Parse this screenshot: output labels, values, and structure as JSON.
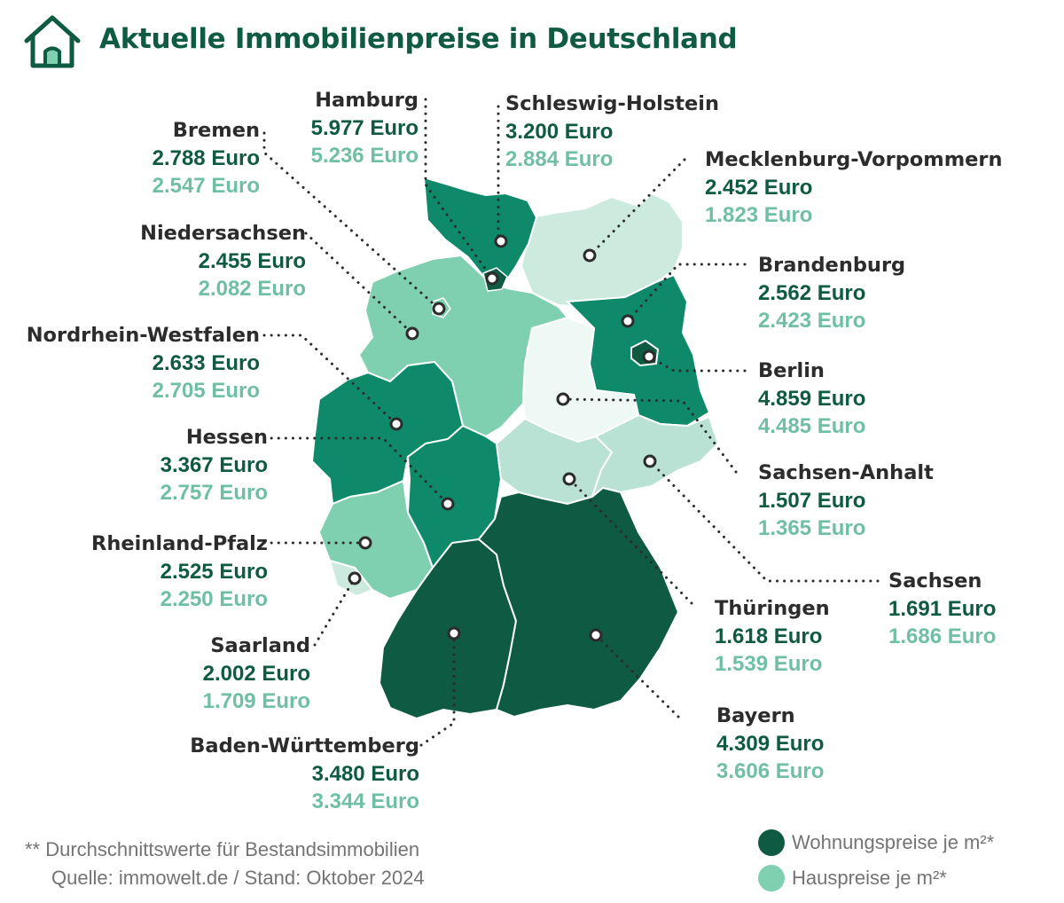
{
  "title": "Aktuelle Immobilienpreise in Deutschland",
  "colors": {
    "apartment": "#0e5a43",
    "house": "#7fcfb1",
    "house_label": "#6fbfa6"
  },
  "regions": [
    {
      "id": "hamburg",
      "name": "Hamburg",
      "apartment_price": "5.977 Euro",
      "house_price": "5.236 Euro"
    },
    {
      "id": "schleswig-holstein",
      "name": "Schleswig-Holstein",
      "apartment_price": "3.200 Euro",
      "house_price": "2.884 Euro"
    },
    {
      "id": "bremen",
      "name": "Bremen",
      "apartment_price": "2.788 Euro",
      "house_price": "2.547 Euro"
    },
    {
      "id": "mecklenburg-vorpommern",
      "name": "Mecklenburg-Vorpommern",
      "apartment_price": "2.452 Euro",
      "house_price": "1.823 Euro"
    },
    {
      "id": "niedersachsen",
      "name": "Niedersachsen",
      "apartment_price": "2.455 Euro",
      "house_price": "2.082 Euro"
    },
    {
      "id": "brandenburg",
      "name": "Brandenburg",
      "apartment_price": "2.562 Euro",
      "house_price": "2.423 Euro"
    },
    {
      "id": "nordrhein-westfalen",
      "name": "Nordrhein-Westfalen",
      "apartment_price": "2.633 Euro",
      "house_price": "2.705 Euro"
    },
    {
      "id": "berlin",
      "name": "Berlin",
      "apartment_price": "4.859 Euro",
      "house_price": "4.485 Euro"
    },
    {
      "id": "hessen",
      "name": "Hessen",
      "apartment_price": "3.367 Euro",
      "house_price": "2.757 Euro"
    },
    {
      "id": "sachsen-anhalt",
      "name": "Sachsen-Anhalt",
      "apartment_price": "1.507 Euro",
      "house_price": "1.365 Euro"
    },
    {
      "id": "rheinland-pfalz",
      "name": "Rheinland-Pfalz",
      "apartment_price": "2.525 Euro",
      "house_price": "2.250 Euro"
    },
    {
      "id": "sachsen",
      "name": "Sachsen",
      "apartment_price": "1.691 Euro",
      "house_price": "1.686 Euro"
    },
    {
      "id": "thueringen",
      "name": "Thüringen",
      "apartment_price": "1.618 Euro",
      "house_price": "1.539 Euro"
    },
    {
      "id": "saarland",
      "name": "Saarland",
      "apartment_price": "2.002 Euro",
      "house_price": "1.709 Euro"
    },
    {
      "id": "bayern",
      "name": "Bayern",
      "apartment_price": "4.309 Euro",
      "house_price": "3.606 Euro"
    },
    {
      "id": "baden-wuerttemberg",
      "name": "Baden-Württemberg",
      "apartment_price": "3.480 Euro",
      "house_price": "3.344 Euro"
    }
  ],
  "legend": {
    "apartment_label": "Wohnungspreise je m²*",
    "house_label": "Hauspreise je m²*"
  },
  "footer": {
    "note": "** Durchschnittswerte für Bestandsimmobilien",
    "source": "Quelle: immowelt.de  /  Stand: Oktober 2024"
  }
}
